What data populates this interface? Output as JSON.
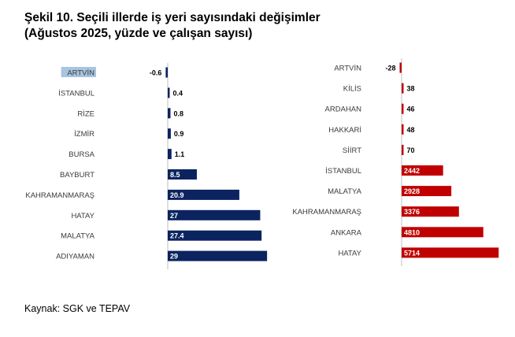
{
  "title_line1": "Şekil 10. Seçili illerde iş yeri sayısındaki değişimler",
  "title_line2": "(Ağustos 2025, yüzde ve çalışan sayısı)",
  "source": "Kaynak: SGK ve TEPAV",
  "colors": {
    "left_bar": "#0b2460",
    "right_bar": "#c00000",
    "axis": "#bfbfbf",
    "highlight": "#a7c4e0"
  },
  "chart_data": [
    {
      "type": "bar",
      "orientation": "horizontal",
      "unit": "yüzde",
      "categories": [
        "ARTVİN",
        "İSTANBUL",
        "RİZE",
        "İZMİR",
        "BURSA",
        "BAYBURT",
        "KAHRAMANMARAŞ",
        "HATAY",
        "MALATYA",
        "ADIYAMAN"
      ],
      "values": [
        -0.6,
        0.4,
        0.8,
        0.9,
        1.1,
        8.5,
        20.9,
        27,
        27.4,
        29
      ],
      "labels": [
        "-0.6",
        "0.4",
        "0.8",
        "0.9",
        "1.1",
        "8.5",
        "20.9",
        "27",
        "27.4",
        "29"
      ],
      "highlighted_category": "ARTVİN",
      "xlim": [
        -2,
        30
      ]
    },
    {
      "type": "bar",
      "orientation": "horizontal",
      "unit": "çalışan sayısı",
      "categories": [
        "ARTVİN",
        "KİLİS",
        "ARDAHAN",
        "HAKKARİ",
        "SİİRT",
        "İSTANBUL",
        "MALATYA",
        "KAHRAMANMARAŞ",
        "ANKARA",
        "HATAY"
      ],
      "values": [
        -28,
        38,
        46,
        48,
        70,
        2442,
        2928,
        3376,
        4810,
        5714
      ],
      "labels": [
        "-28",
        "38",
        "46",
        "48",
        "70",
        "2442",
        "2928",
        "3376",
        "4810",
        "5714"
      ],
      "xlim": [
        -200,
        6000
      ]
    }
  ]
}
